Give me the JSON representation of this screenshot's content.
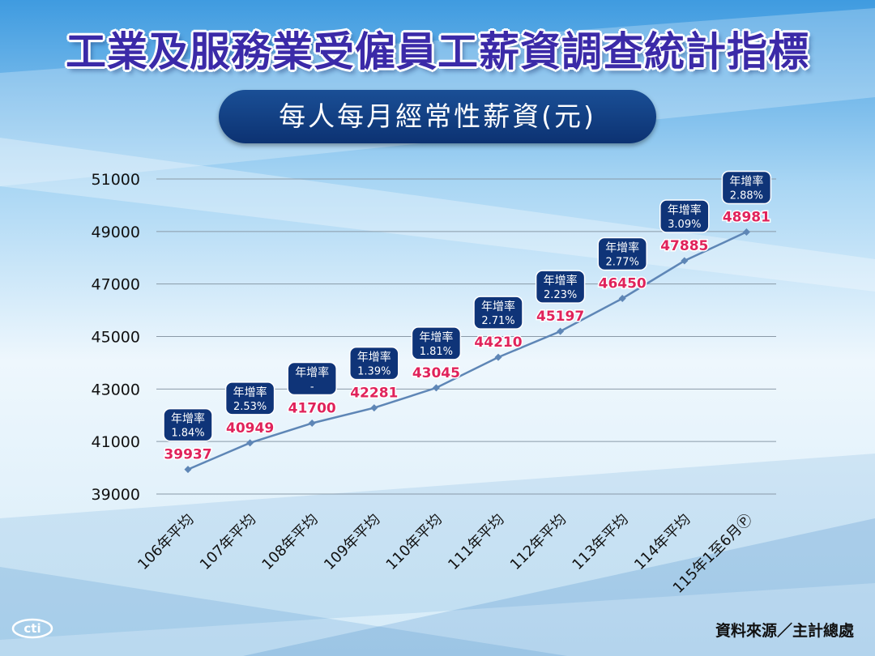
{
  "title": "工業及服務業受僱員工薪資調查統計指標",
  "subtitle": "每人每月經常性薪資(元)",
  "source": "資料來源／主計總處",
  "logo_text": "cti",
  "colors": {
    "line": "#5e86b6",
    "value_label": "#e0235b",
    "badge": "#0f3478",
    "title": "#3b2aa8"
  },
  "chart_data": {
    "type": "line",
    "title": "每人每月經常性薪資(元)",
    "categories": [
      "106年平均",
      "107年平均",
      "108年平均",
      "109年平均",
      "110年平均",
      "111年平均",
      "112年平均",
      "113年平均",
      "114年平均",
      "115年1至6月Ⓟ"
    ],
    "values": [
      39937,
      40949,
      41700,
      42281,
      43045,
      44210,
      45197,
      46450,
      47885,
      48981
    ],
    "value_labels": [
      "39937",
      "40949",
      "41700",
      "42281",
      "43045",
      "44210",
      "45197",
      "46450",
      "47885",
      "48981"
    ],
    "growth_label": "年增率",
    "growth_rates": [
      "1.84%",
      "2.53%",
      "-",
      "1.39%",
      "1.81%",
      "2.71%",
      "2.23%",
      "2.77%",
      "3.09%",
      "2.88%"
    ],
    "y_ticks": [
      "39000",
      "41000",
      "43000",
      "45000",
      "47000",
      "49000",
      "51000"
    ],
    "ylim": [
      39000,
      51000
    ],
    "grid": true
  }
}
